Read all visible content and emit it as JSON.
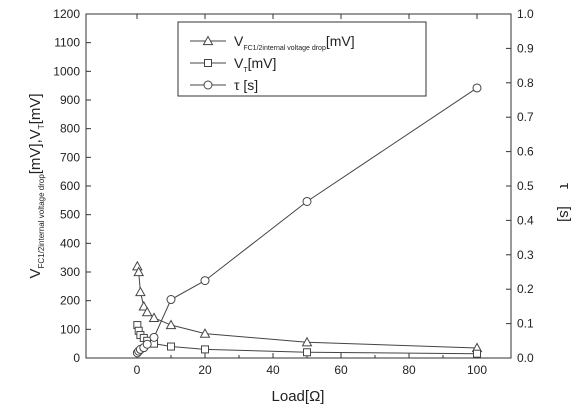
{
  "chart_data": {
    "type": "line",
    "x_label": "Load[Ω]",
    "y_label_left": {
      "main": "V",
      "sub": "FC1/2internal voltage drop",
      "rest": "[mV],V",
      "sub2": "T",
      "end": "[mV]"
    },
    "y_label_right": {
      "symbol": "τ",
      "unit": "[s]"
    },
    "x_range": [
      -15,
      110
    ],
    "x_ticks": [
      0,
      20,
      40,
      60,
      80,
      100
    ],
    "y_left_range": [
      0,
      1200
    ],
    "y_left_ticks": [
      0,
      100,
      200,
      300,
      400,
      500,
      600,
      700,
      800,
      900,
      1000,
      1100,
      1200
    ],
    "y_right_range": [
      0,
      1.0
    ],
    "y_right_ticks": [
      "0.0",
      "0.1",
      "0.2",
      "0.3",
      "0.4",
      "0.5",
      "0.6",
      "0.7",
      "0.8",
      "0.9",
      "1.0"
    ],
    "grid": false,
    "legend_position": "top-center",
    "series": [
      {
        "name": "V_FC1/2internal voltage drop [mV]",
        "legend": {
          "main": "V",
          "sub": "FC1/2internal voltage drop",
          "rest": "[mV]"
        },
        "marker": "triangle",
        "axis": "left",
        "x": [
          0.1,
          0.5,
          1,
          2,
          3,
          5,
          10,
          20,
          50,
          100
        ],
        "y": [
          320,
          300,
          230,
          180,
          160,
          140,
          115,
          85,
          55,
          35
        ]
      },
      {
        "name": "V_T [mV]",
        "legend": {
          "main": "V",
          "sub": "T",
          "rest": "[mV]"
        },
        "marker": "square",
        "axis": "left",
        "x": [
          0.1,
          0.5,
          1,
          2,
          3,
          5,
          10,
          20,
          50,
          100
        ],
        "y": [
          115,
          95,
          80,
          70,
          60,
          50,
          40,
          30,
          20,
          15
        ]
      },
      {
        "name": "τ [s]",
        "legend": {
          "main": "τ",
          "sub": "",
          "rest": "  [s]"
        },
        "marker": "circle",
        "axis": "right",
        "x": [
          0.1,
          0.5,
          1,
          2,
          3,
          5,
          10,
          20,
          50,
          100
        ],
        "y": [
          0.015,
          0.02,
          0.025,
          0.03,
          0.04,
          0.06,
          0.17,
          0.225,
          0.455,
          0.785
        ]
      }
    ]
  }
}
